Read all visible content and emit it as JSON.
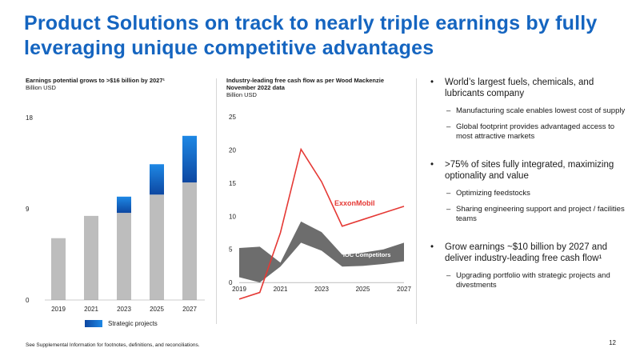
{
  "slide": {
    "title_line1": "Product Solutions on track to nearly triple earnings by fully",
    "title_line2": "leveraging unique competitive advantages",
    "footer": "See Supplemental Information for footnotes, definitions, and reconciliations.",
    "page_number": "12"
  },
  "colors": {
    "title": "#1565c0",
    "bar_base": "#bdbdbd",
    "bar_strategic": "#1565c0",
    "exxon_line": "#e53935",
    "ioc_band": "#6d6d6d"
  },
  "bullets": [
    {
      "text": "World’s largest fuels, chemicals, and lubricants company",
      "subs": [
        "Manufacturing scale enables lowest cost of supply",
        "Global footprint provides advantaged access to most attractive markets"
      ]
    },
    {
      "text": ">75% of sites fully integrated, maximizing optionality and value",
      "subs": [
        "Optimizing feedstocks",
        "Sharing engineering support and project / facilities teams"
      ]
    },
    {
      "text": "Grow earnings ~$10 billion by 2027 and deliver industry-leading free cash flow¹",
      "subs": [
        "Upgrading portfolio with strategic projects and divestments"
      ]
    }
  ],
  "chart_data": [
    {
      "type": "bar",
      "stacked": true,
      "title": "Earnings potential grows to >$16 billion by 2027¹",
      "subtitle": "Billion USD",
      "categories": [
        "2019",
        "2021",
        "2023",
        "2025",
        "2027"
      ],
      "yticks": [
        0,
        9,
        18
      ],
      "ylim": [
        0,
        18
      ],
      "series": [
        {
          "name": "",
          "values": [
            6.1,
            8.3,
            8.6,
            10.4,
            11.6
          ]
        },
        {
          "name": "Strategic projects",
          "values": [
            0,
            0,
            1.6,
            3.0,
            4.6
          ]
        }
      ],
      "legend": "bottom"
    },
    {
      "type": "line",
      "title": "Industry-leading free cash flow as per Wood Mackenzie November 2022 data",
      "subtitle": "Billion USD",
      "x": [
        2019,
        2020,
        2021,
        2022,
        2023,
        2024,
        2025,
        2026,
        2027
      ],
      "xticks": [
        "2019",
        "2021",
        "2023",
        "2025",
        "2027"
      ],
      "yticks": [
        0,
        5,
        10,
        15,
        20,
        25
      ],
      "ylim": [
        0,
        25
      ],
      "series": [
        {
          "name": "ExxonMobil",
          "values": [
            -2.5,
            -1.5,
            7.5,
            20.1,
            15.2,
            8.5,
            9.5,
            10.5,
            11.5
          ]
        }
      ],
      "band": {
        "name": "IOC Competitors",
        "upper": [
          5.2,
          5.4,
          3.0,
          9.2,
          7.6,
          4.2,
          4.5,
          5.0,
          6.0
        ],
        "lower": [
          0.8,
          0.0,
          2.4,
          6.0,
          4.8,
          2.4,
          2.5,
          2.8,
          3.2
        ]
      }
    }
  ]
}
